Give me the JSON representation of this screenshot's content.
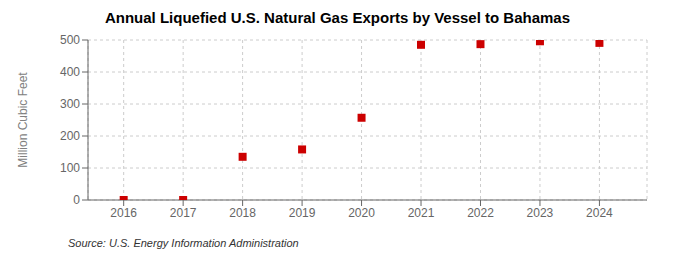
{
  "chart_data": {
    "type": "scatter",
    "title": "Annual Liquefied U.S. Natural Gas Exports by Vessel to Bahamas",
    "ylabel": "Million Cubic Feet",
    "source": "Source: U.S. Energy Information Administration",
    "x": [
      2016,
      2017,
      2018,
      2019,
      2020,
      2021,
      2022,
      2023,
      2024
    ],
    "values": [
      0,
      0,
      135,
      158,
      257,
      485,
      487,
      496,
      491
    ],
    "xlim": [
      2015.4,
      2024.8
    ],
    "xticks": [
      2016,
      2017,
      2018,
      2019,
      2020,
      2021,
      2022,
      2023,
      2024
    ],
    "ylim": [
      0,
      500
    ],
    "yticks": [
      0,
      100,
      200,
      300,
      400,
      500
    ],
    "color": "#cc0000",
    "marker": "square",
    "grid": true
  }
}
